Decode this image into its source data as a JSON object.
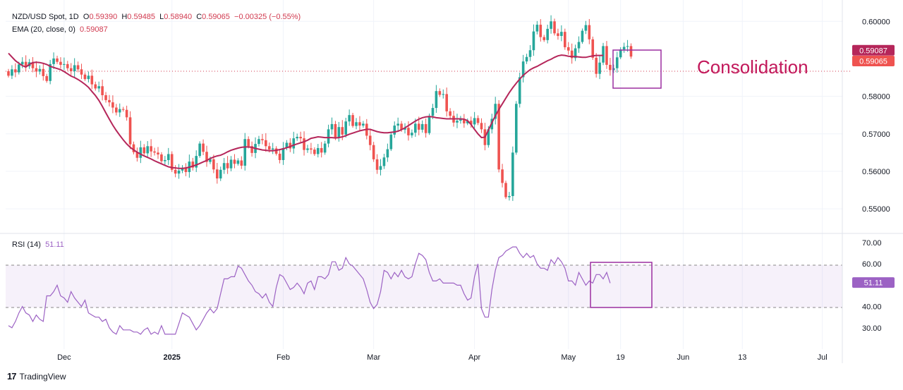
{
  "header": {
    "symbol": "NZD/USD Spot, 1D",
    "o_label": "O",
    "o_value": "0.59390",
    "h_label": "H",
    "h_value": "0.59485",
    "l_label": "L",
    "l_value": "0.58940",
    "c_label": "C",
    "c_value": "0.59065",
    "change": "−0.00325 (−0.55%)",
    "ema_label": "EMA (20, close, 0)",
    "ema_value": "0.59087",
    "rsi_label": "RSI (14)",
    "rsi_value": "51.11"
  },
  "annotation": "Consolidation",
  "branding": "TradingView",
  "colors": {
    "up": "#26a69a",
    "down": "#ef5350",
    "ema": "#b5265a",
    "rsi": "#9c62c4",
    "box": "#9c2fa0",
    "annotation": "#c2185b"
  },
  "chart_data": [
    {
      "type": "candlestick",
      "title": "NZD/USD Spot, 1D",
      "ylim": [
        0.5455,
        0.604
      ],
      "y_ticks": [
        "0.60000",
        "0.58000",
        "0.57000",
        "0.56000",
        "0.55000"
      ],
      "price_labels": [
        {
          "text": "0.59087",
          "value": 0.59087,
          "series": "EMA"
        },
        {
          "text": "0.59065",
          "value": 0.59065,
          "series": "Close"
        }
      ],
      "x_ticks": [
        {
          "label": "Dec",
          "bar": 16
        },
        {
          "label": "2025",
          "bar": 47
        },
        {
          "label": "Feb",
          "bar": 79
        },
        {
          "label": "Mar",
          "bar": 105
        },
        {
          "label": "Apr",
          "bar": 134
        },
        {
          "label": "May",
          "bar": 161
        },
        {
          "label": "19",
          "bar": 176
        },
        {
          "label": "Jun",
          "bar": 194
        },
        {
          "label": "13",
          "bar": 211
        },
        {
          "label": "Jul",
          "bar": 234
        }
      ],
      "close": [
        0.5855,
        0.5872,
        0.5864,
        0.5885,
        0.5892,
        0.588,
        0.5891,
        0.5875,
        0.5866,
        0.5873,
        0.5854,
        0.5841,
        0.5886,
        0.5901,
        0.5892,
        0.5884,
        0.5886,
        0.5875,
        0.5867,
        0.5883,
        0.5872,
        0.5858,
        0.5846,
        0.5855,
        0.5832,
        0.5821,
        0.5827,
        0.5803,
        0.579,
        0.5784,
        0.577,
        0.5757,
        0.5766,
        0.5764,
        0.5744,
        0.5672,
        0.5651,
        0.5636,
        0.5664,
        0.5648,
        0.5667,
        0.5653,
        0.565,
        0.5645,
        0.5627,
        0.563,
        0.5646,
        0.5604,
        0.5594,
        0.5602,
        0.5608,
        0.5598,
        0.5626,
        0.561,
        0.5641,
        0.5674,
        0.5652,
        0.5625,
        0.5632,
        0.5605,
        0.5581,
        0.5604,
        0.5622,
        0.5608,
        0.5631,
        0.562,
        0.5629,
        0.5615,
        0.5686,
        0.5667,
        0.5649,
        0.5673,
        0.5686,
        0.5683,
        0.5667,
        0.5658,
        0.5661,
        0.5647,
        0.563,
        0.5662,
        0.5676,
        0.5661,
        0.5688,
        0.5692,
        0.5688,
        0.5657,
        0.5661,
        0.5658,
        0.5646,
        0.5662,
        0.565,
        0.5674,
        0.5712,
        0.5726,
        0.569,
        0.5718,
        0.5698,
        0.5733,
        0.575,
        0.5721,
        0.5731,
        0.5722,
        0.5727,
        0.5695,
        0.567,
        0.5632,
        0.5604,
        0.5614,
        0.5637,
        0.5659,
        0.5698,
        0.5722,
        0.5727,
        0.5711,
        0.5716,
        0.5696,
        0.5703,
        0.5727,
        0.5711,
        0.5726,
        0.5702,
        0.5748,
        0.5769,
        0.5814,
        0.5804,
        0.5806,
        0.576,
        0.5748,
        0.573,
        0.5735,
        0.5738,
        0.5728,
        0.5735,
        0.5725,
        0.5742,
        0.5729,
        0.5712,
        0.567,
        0.5712,
        0.574,
        0.578,
        0.5605,
        0.5569,
        0.5531,
        0.5534,
        0.565,
        0.578,
        0.5851,
        0.5893,
        0.5905,
        0.5923,
        0.5973,
        0.5991,
        0.5958,
        0.595,
        0.598,
        0.6,
        0.5968,
        0.5961,
        0.5972,
        0.5931,
        0.5922,
        0.5902,
        0.5928,
        0.5945,
        0.5975,
        0.599,
        0.5952,
        0.5903,
        0.586,
        0.589,
        0.5934,
        0.5884,
        0.587,
        0.5875,
        0.5904,
        0.5925,
        0.5932,
        0.5934,
        0.5906
      ],
      "ema": [
        0.5915,
        0.5905,
        0.5895,
        0.5888,
        0.5882,
        0.5878,
        0.5885,
        0.589,
        0.5891,
        0.589,
        0.5888,
        0.5885,
        0.588,
        0.5877,
        0.5874,
        0.5871,
        0.5866,
        0.586,
        0.5854,
        0.585,
        0.5845,
        0.5839,
        0.5832,
        0.5824,
        0.5813,
        0.5802,
        0.5789,
        0.5773,
        0.5756,
        0.5739,
        0.5723,
        0.5709,
        0.5696,
        0.5684,
        0.5673,
        0.5664,
        0.5657,
        0.5651,
        0.5646,
        0.5641,
        0.5637,
        0.5633,
        0.5628,
        0.5624,
        0.562,
        0.5616,
        0.5612,
        0.561,
        0.5609,
        0.5608,
        0.5608,
        0.5609,
        0.5611,
        0.5614,
        0.5617,
        0.5621,
        0.5625,
        0.5629,
        0.5634,
        0.5638,
        0.5641,
        0.5643,
        0.5647,
        0.5652,
        0.5656,
        0.5659,
        0.5662,
        0.5664,
        0.5665,
        0.5665,
        0.5664,
        0.5661,
        0.5659,
        0.5657,
        0.5656,
        0.5655,
        0.5655,
        0.5656,
        0.5658,
        0.566,
        0.5663,
        0.5666,
        0.567,
        0.5673,
        0.5676,
        0.5679,
        0.5683,
        0.5688,
        0.569,
        0.5692,
        0.5691,
        0.569,
        0.569,
        0.569,
        0.5689,
        0.569,
        0.5692,
        0.5695,
        0.5699,
        0.5702,
        0.5705,
        0.5708,
        0.571,
        0.5712,
        0.5712,
        0.5709,
        0.5706,
        0.5704,
        0.5703,
        0.5703,
        0.5704,
        0.5705,
        0.5707,
        0.5711,
        0.5716,
        0.5722,
        0.5728,
        0.5734,
        0.5739,
        0.5743,
        0.5745,
        0.5746,
        0.5745,
        0.5743,
        0.5742,
        0.5741,
        0.574,
        0.574,
        0.574,
        0.574,
        0.574,
        0.5739,
        0.5735,
        0.5725,
        0.5712,
        0.57,
        0.569,
        0.5691,
        0.571,
        0.573,
        0.5748,
        0.5765,
        0.578,
        0.5795,
        0.581,
        0.5823,
        0.5835,
        0.5846,
        0.5856,
        0.5864,
        0.5871,
        0.5876,
        0.588,
        0.5885,
        0.589,
        0.5895,
        0.5899,
        0.5904,
        0.5908,
        0.591,
        0.5909,
        0.5907,
        0.5906,
        0.5906,
        0.5905,
        0.5904,
        0.5904,
        0.5906,
        0.5908,
        0.5909,
        0.5909,
        0.5909
      ]
    },
    {
      "type": "line",
      "title": "RSI (14)",
      "ylim": [
        20,
        73
      ],
      "y_ticks": [
        "70.00",
        "60.00",
        "40.00",
        "30.00"
      ],
      "band": [
        40,
        60
      ],
      "last_label": "51.11",
      "values": [
        31,
        30,
        33,
        37,
        40,
        37,
        36,
        33,
        36,
        34,
        33,
        45,
        45,
        47,
        50,
        45,
        44,
        42,
        47,
        44,
        42,
        40,
        43,
        37,
        36,
        35,
        35,
        33,
        34,
        30,
        28,
        27,
        31,
        29,
        29,
        29,
        28,
        28,
        27,
        29,
        30,
        27,
        28,
        27,
        31,
        27,
        27,
        27,
        27,
        32,
        37,
        36,
        35,
        32,
        29,
        31,
        34,
        37,
        39,
        37,
        39,
        46,
        53,
        53,
        54,
        54,
        59,
        58,
        55,
        52,
        50,
        47,
        46,
        44,
        46,
        42,
        40,
        49,
        55,
        54,
        51,
        48,
        49,
        51,
        49,
        46,
        51,
        52,
        48,
        54,
        54,
        53,
        55,
        61,
        61,
        57,
        58,
        63,
        60,
        59,
        57,
        55,
        53,
        48,
        42,
        39,
        41,
        47,
        57,
        56,
        53,
        56,
        54,
        57,
        54,
        53,
        54,
        60,
        65,
        64,
        62,
        56,
        52,
        52,
        53,
        51,
        51,
        51,
        51,
        50,
        50,
        46,
        43,
        44,
        54,
        60,
        39,
        35,
        35,
        48,
        57,
        63,
        64,
        66,
        67,
        68,
        68,
        65,
        63,
        65,
        63,
        64,
        60,
        58,
        58,
        57,
        62,
        60,
        63,
        61,
        58,
        52,
        52,
        50,
        56,
        53,
        50,
        52,
        51,
        55,
        55,
        53,
        56,
        51
      ]
    }
  ]
}
